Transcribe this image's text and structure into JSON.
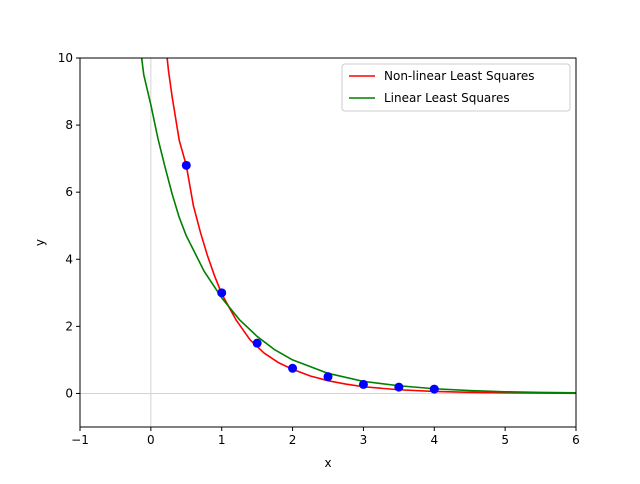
{
  "chart_data": {
    "type": "line",
    "xlabel": "x",
    "ylabel": "y",
    "xlim": [
      -1,
      6
    ],
    "ylim": [
      -1,
      10
    ],
    "x_ticks": [
      -1,
      0,
      1,
      2,
      3,
      4,
      5,
      6
    ],
    "y_ticks": [
      0,
      2,
      4,
      6,
      8,
      10
    ],
    "grid": false,
    "reference_lines": {
      "x": 0,
      "y": 0,
      "color": "#d3d3d3"
    },
    "legend": "top-right",
    "series": [
      {
        "name": "Non-linear Least Squares",
        "kind": "line",
        "color": "#ff0000",
        "x": [
          0.23,
          0.25,
          0.3,
          0.35,
          0.4,
          0.5,
          0.6,
          0.7,
          0.8,
          0.9,
          1.0,
          1.2,
          1.4,
          1.6,
          1.8,
          2.0,
          2.25,
          2.5,
          2.75,
          3.0,
          3.5,
          4.0,
          4.5,
          5.0,
          5.5,
          6.0
        ],
        "y": [
          10.0,
          9.6,
          8.85,
          8.2,
          7.55,
          6.8,
          5.6,
          4.8,
          4.1,
          3.5,
          2.97,
          2.2,
          1.6,
          1.2,
          0.92,
          0.72,
          0.52,
          0.38,
          0.28,
          0.2,
          0.11,
          0.06,
          0.035,
          0.02,
          0.01,
          0.005
        ]
      },
      {
        "name": "Linear Least Squares",
        "kind": "line",
        "color": "#008000",
        "x": [
          -0.13,
          -0.1,
          0.0,
          0.1,
          0.2,
          0.3,
          0.4,
          0.5,
          0.75,
          1.0,
          1.25,
          1.5,
          1.75,
          2.0,
          2.5,
          3.0,
          3.5,
          4.0,
          4.5,
          5.0,
          5.5,
          6.0
        ],
        "y": [
          10.0,
          9.5,
          8.6,
          7.6,
          6.75,
          5.95,
          5.25,
          4.7,
          3.65,
          2.85,
          2.2,
          1.7,
          1.3,
          1.0,
          0.6,
          0.36,
          0.23,
          0.14,
          0.085,
          0.05,
          0.03,
          0.02
        ]
      },
      {
        "name": "",
        "kind": "scatter",
        "color": "#0000ff",
        "x": [
          0.5,
          1.0,
          1.5,
          2.0,
          2.5,
          3.0,
          3.5,
          4.0
        ],
        "y": [
          6.8,
          3.0,
          1.5,
          0.75,
          0.5,
          0.27,
          0.19,
          0.13
        ]
      }
    ]
  }
}
